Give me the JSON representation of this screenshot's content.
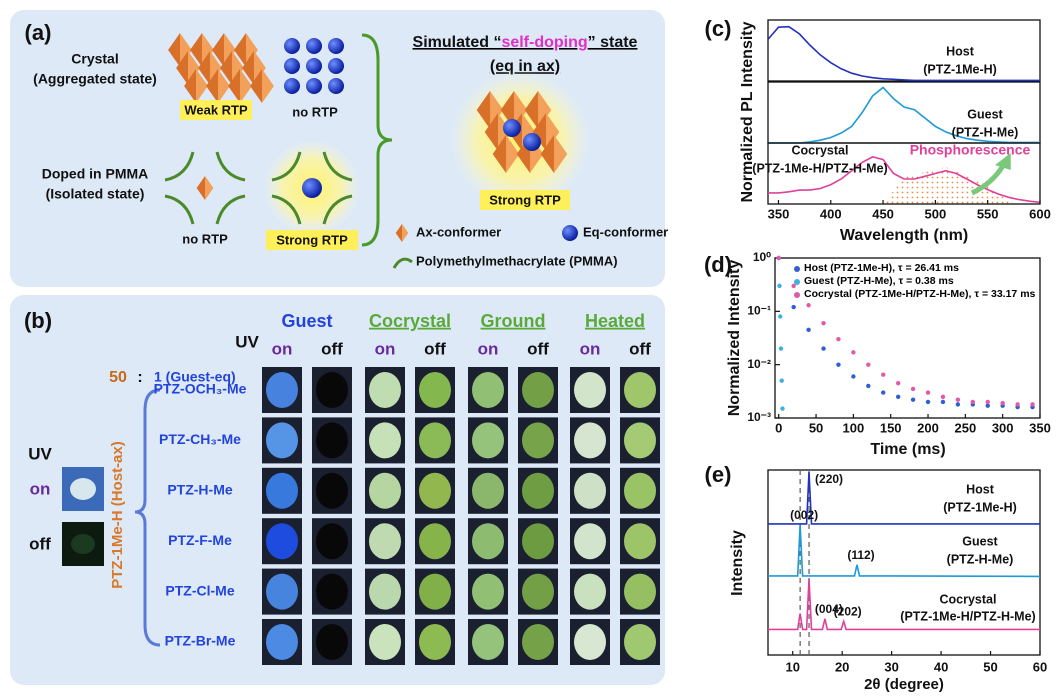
{
  "panel_a": {
    "label": "(a)",
    "crystal": [
      "Crystal",
      "(Aggregated state)"
    ],
    "weak_rtp": "Weak RTP",
    "no_rtp_crystal": "no RTP",
    "doped": [
      "Doped in PMMA",
      "(Isolated state)"
    ],
    "no_rtp_doped": "no RTP",
    "strong_rtp_doped": "Strong RTP",
    "simulated_title": [
      "Simulated “",
      "self-doping",
      "” state"
    ],
    "simulated_subtitle": "(eq in ax)",
    "strong_rtp_simulated": "Strong RTP",
    "legend": [
      "Ax-conformer",
      "Eq-conformer",
      "Polymethylmethacrylate (PMMA)"
    ]
  },
  "panel_b": {
    "label": "(b)",
    "uv": "UV",
    "groups": [
      "Guest",
      "Cocrystal",
      "Ground",
      "Heated"
    ],
    "states": [
      "on",
      "off"
    ],
    "ratio": [
      "50",
      ":",
      "1 (Guest-eq)"
    ],
    "host": "PTZ-1Me-H (Host-ax)",
    "samples": [
      "PTZ-OCH₃-Me",
      "PTZ-CH₃-Me",
      "PTZ-H-Me",
      "PTZ-F-Me",
      "PTZ-Cl-Me",
      "PTZ-Br-Me"
    ],
    "reference": {
      "uv": "UV",
      "states": [
        "on",
        "off"
      ]
    }
  },
  "chart_data": [
    {
      "type": "line",
      "label": "(c)",
      "ylabel": "Normalized PL Intensity",
      "xlabel": "Wavelength (nm)",
      "xlim": [
        340,
        600
      ],
      "xticks": [
        350,
        400,
        450,
        500,
        550,
        600
      ],
      "ylim": [
        0,
        1.1
      ],
      "x": [
        340,
        350,
        360,
        370,
        380,
        390,
        400,
        410,
        420,
        430,
        440,
        450,
        460,
        470,
        480,
        490,
        500,
        510,
        520,
        530,
        540,
        550,
        560,
        570,
        580,
        590,
        600
      ],
      "series": [
        {
          "name": [
            "Host",
            "(PTZ-1Me-H)"
          ],
          "color": "#2233bb",
          "values": [
            0.75,
            0.97,
            0.98,
            0.85,
            0.65,
            0.47,
            0.33,
            0.22,
            0.14,
            0.09,
            0.06,
            0.04,
            0.03,
            0.02,
            0.01,
            0.01,
            0.01,
            0.01,
            0.01,
            0.01,
            0.01,
            0.01,
            0.01,
            0.01,
            0.01,
            0.01,
            0.01
          ]
        },
        {
          "name": [
            "Guest",
            "(PTZ-H-Me)"
          ],
          "color": "#1e9ad6",
          "values": [
            0,
            0,
            0,
            0,
            0.02,
            0.05,
            0.1,
            0.18,
            0.3,
            0.55,
            0.85,
            1.0,
            0.8,
            0.65,
            0.6,
            0.45,
            0.3,
            0.2,
            0.13,
            0.08,
            0.05,
            0.03,
            0.02,
            0.01,
            0.01,
            0.01,
            0.01
          ]
        },
        {
          "name": [
            "Cocrystal",
            "(PTZ-1Me-H/PTZ-H-Me)"
          ],
          "color": "#e0409a",
          "values": [
            0.2,
            0.2,
            0.22,
            0.25,
            0.25,
            0.28,
            0.35,
            0.45,
            0.6,
            0.75,
            0.85,
            0.8,
            0.55,
            0.45,
            0.45,
            0.5,
            0.55,
            0.6,
            0.55,
            0.45,
            0.35,
            0.26,
            0.18,
            0.12,
            0.08,
            0.05,
            0.03
          ]
        }
      ],
      "annotation": "Phosphorescence"
    },
    {
      "type": "scatter",
      "label": "(d)",
      "ylabel": "Normalized Intensity",
      "xlabel": "Time (ms)",
      "xlim": [
        -5,
        350
      ],
      "xticks": [
        0,
        50,
        100,
        150,
        200,
        250,
        300,
        350
      ],
      "ylim": [
        0.001,
        1
      ],
      "log_y": true,
      "yticks": [
        {
          "value": 0.001,
          "label": "10⁻³"
        },
        {
          "value": 0.01,
          "label": "10⁻²"
        },
        {
          "value": 0.1,
          "label": "10⁻¹"
        },
        {
          "value": 1,
          "label": "10⁰"
        }
      ],
      "series": [
        {
          "name": "Host (PTZ-1Me-H), τ = 26.41 ms",
          "color": "#2f5fd0",
          "x": [
            0,
            20,
            40,
            60,
            80,
            100,
            120,
            140,
            160,
            180,
            200,
            220,
            240,
            260,
            280,
            300,
            320,
            340
          ],
          "values": [
            1,
            0.12,
            0.045,
            0.02,
            0.01,
            0.006,
            0.004,
            0.003,
            0.0025,
            0.0022,
            0.002,
            0.002,
            0.0018,
            0.0018,
            0.0017,
            0.0017,
            0.0016,
            0.0016
          ]
        },
        {
          "name": "Guest (PTZ-H-Me), τ = 0.38 ms",
          "color": "#3fb0e0",
          "x": [
            0,
            1,
            2,
            3,
            4,
            5
          ],
          "values": [
            1,
            0.3,
            0.08,
            0.02,
            0.005,
            0.0015
          ]
        },
        {
          "name": "Cocrystal (PTZ-1Me-H/PTZ-H-Me), τ = 33.17 ms",
          "color": "#e05aa8",
          "x": [
            0,
            20,
            40,
            60,
            80,
            100,
            120,
            140,
            160,
            180,
            200,
            220,
            240,
            260,
            280,
            300,
            320,
            340
          ],
          "values": [
            1,
            0.3,
            0.13,
            0.06,
            0.03,
            0.017,
            0.01,
            0.0065,
            0.0045,
            0.0035,
            0.003,
            0.0025,
            0.0022,
            0.002,
            0.002,
            0.0019,
            0.0018,
            0.0018
          ]
        }
      ]
    },
    {
      "type": "line",
      "label": "(e)",
      "ylabel": "Intensity",
      "xlabel": "2θ (degree)",
      "xlim": [
        5,
        60
      ],
      "xticks": [
        10,
        20,
        30,
        40,
        50,
        60
      ],
      "ylim": [
        0,
        1
      ],
      "reference_lines": [
        11.5,
        13.3
      ],
      "series": [
        {
          "name": [
            "Host",
            "(PTZ-1Me-H)"
          ],
          "color": "#2233bb",
          "x": [
            5,
            12.8,
            13.3,
            13.8,
            60
          ],
          "values": [
            0.02,
            0.02,
            1,
            0.02,
            0.02
          ],
          "peaks": [
            {
              "text": "(220)",
              "x": 13.3
            }
          ]
        },
        {
          "name": [
            "Guest",
            "(PTZ-H-Me)"
          ],
          "color": "#1e9ad6",
          "x": [
            5,
            11.0,
            11.5,
            12.0,
            22.5,
            23.0,
            23.5,
            60
          ],
          "values": [
            0.04,
            0.04,
            1,
            0.04,
            0.04,
            0.25,
            0.04,
            0.03
          ],
          "peaks": [
            {
              "text": "(002)",
              "x": 11.5
            },
            {
              "text": "(112)",
              "x": 23.0
            }
          ]
        },
        {
          "name": [
            "Cocrystal",
            "(PTZ-1Me-H/PTZ-H-Me)"
          ],
          "color": "#e0409a",
          "x": [
            5,
            11.0,
            11.5,
            12.0,
            12.8,
            13.3,
            13.8,
            16.0,
            16.5,
            17.0,
            19.8,
            20.3,
            20.8,
            60
          ],
          "values": [
            0.05,
            0.05,
            0.35,
            0.05,
            0.05,
            1,
            0.05,
            0.05,
            0.25,
            0.05,
            0.05,
            0.2,
            0.05,
            0.05
          ],
          "peaks": [
            {
              "text": "(004)",
              "x": 16.5
            },
            {
              "text": "(202)",
              "x": 20.3
            }
          ]
        }
      ]
    }
  ]
}
